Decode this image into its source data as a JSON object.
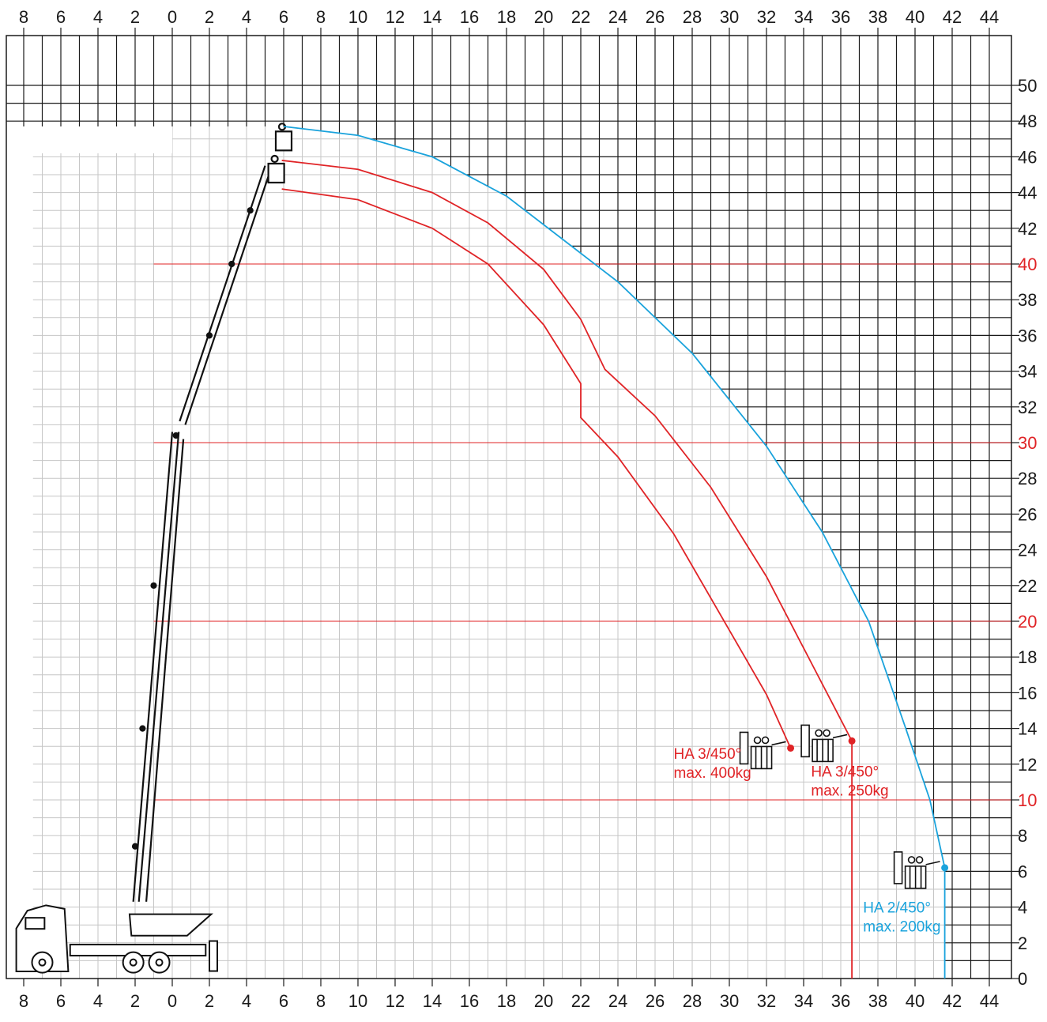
{
  "chart_data": {
    "type": "line",
    "title": "",
    "xlabel": "",
    "ylabel": "",
    "xlim": [
      -8,
      44
    ],
    "ylim": [
      0,
      50
    ],
    "x_ticks_labeled": [
      "8",
      "6",
      "4",
      "2",
      "0",
      "2",
      "4",
      "6",
      "8",
      "10",
      "12",
      "14",
      "16",
      "18",
      "20",
      "22",
      "24",
      "26",
      "28",
      "30",
      "32",
      "34",
      "36",
      "38",
      "40",
      "42",
      "44"
    ],
    "y_ticks_labeled": [
      "0",
      "2",
      "4",
      "6",
      "8",
      "10",
      "12",
      "14",
      "16",
      "18",
      "20",
      "22",
      "24",
      "26",
      "28",
      "30",
      "32",
      "34",
      "36",
      "38",
      "40",
      "42",
      "44",
      "46",
      "48",
      "50"
    ],
    "highlighted_y_ticks": [
      10,
      20,
      30,
      40
    ],
    "grid": true,
    "series": [
      {
        "name": "HA 2/450° max. 200kg",
        "color": "#1aa3dc",
        "endpoint": [
          41.6,
          6.2
        ],
        "points": [
          [
            6.0,
            47.7
          ],
          [
            10,
            47.2
          ],
          [
            14,
            46.0
          ],
          [
            18,
            43.8
          ],
          [
            21.5,
            41.0
          ],
          [
            24,
            39.0
          ],
          [
            28,
            35.0
          ],
          [
            32,
            29.8
          ],
          [
            35,
            25.0
          ],
          [
            37.5,
            20.0
          ],
          [
            39.5,
            14.0
          ],
          [
            40.8,
            10.0
          ],
          [
            41.6,
            6.2
          ],
          [
            41.6,
            0
          ]
        ]
      },
      {
        "name": "HA 3/450° max. 250kg",
        "color": "#e02326",
        "endpoint": [
          36.6,
          13.3
        ],
        "points": [
          [
            5.9,
            45.8
          ],
          [
            10,
            45.3
          ],
          [
            14,
            44.0
          ],
          [
            17,
            42.3
          ],
          [
            20,
            39.7
          ],
          [
            22,
            36.9
          ],
          [
            23.3,
            34.1
          ],
          [
            26,
            31.5
          ],
          [
            29,
            27.5
          ],
          [
            32,
            22.5
          ],
          [
            34.5,
            17.5
          ],
          [
            36.6,
            13.3
          ],
          [
            36.6,
            0
          ]
        ]
      },
      {
        "name": "HA 3/450° max. 400kg",
        "color": "#e02326",
        "endpoint": [
          33.3,
          12.9
        ],
        "points": [
          [
            5.9,
            44.2
          ],
          [
            10,
            43.6
          ],
          [
            14,
            42.0
          ],
          [
            17,
            40.0
          ],
          [
            20,
            36.6
          ],
          [
            22,
            33.3
          ],
          [
            22,
            31.4
          ],
          [
            24,
            29.2
          ],
          [
            27,
            24.9
          ],
          [
            30,
            19.5
          ],
          [
            32,
            15.9
          ],
          [
            33.3,
            12.9
          ]
        ]
      }
    ],
    "annotations": [
      {
        "name": "label-ha3-400",
        "lines": [
          "HA 3/450°",
          "max. 400kg"
        ],
        "color": "#e02326",
        "x": 27.0,
        "y": 12.3
      },
      {
        "name": "label-ha3-250",
        "lines": [
          "HA 3/450°",
          "max. 250kg"
        ],
        "color": "#e02326",
        "x": 34.4,
        "y": 11.3
      },
      {
        "name": "label-ha2-200",
        "lines": [
          "HA 2/450°",
          "max. 200kg"
        ],
        "color": "#1aa3dc",
        "x": 37.2,
        "y": 3.7
      }
    ]
  }
}
